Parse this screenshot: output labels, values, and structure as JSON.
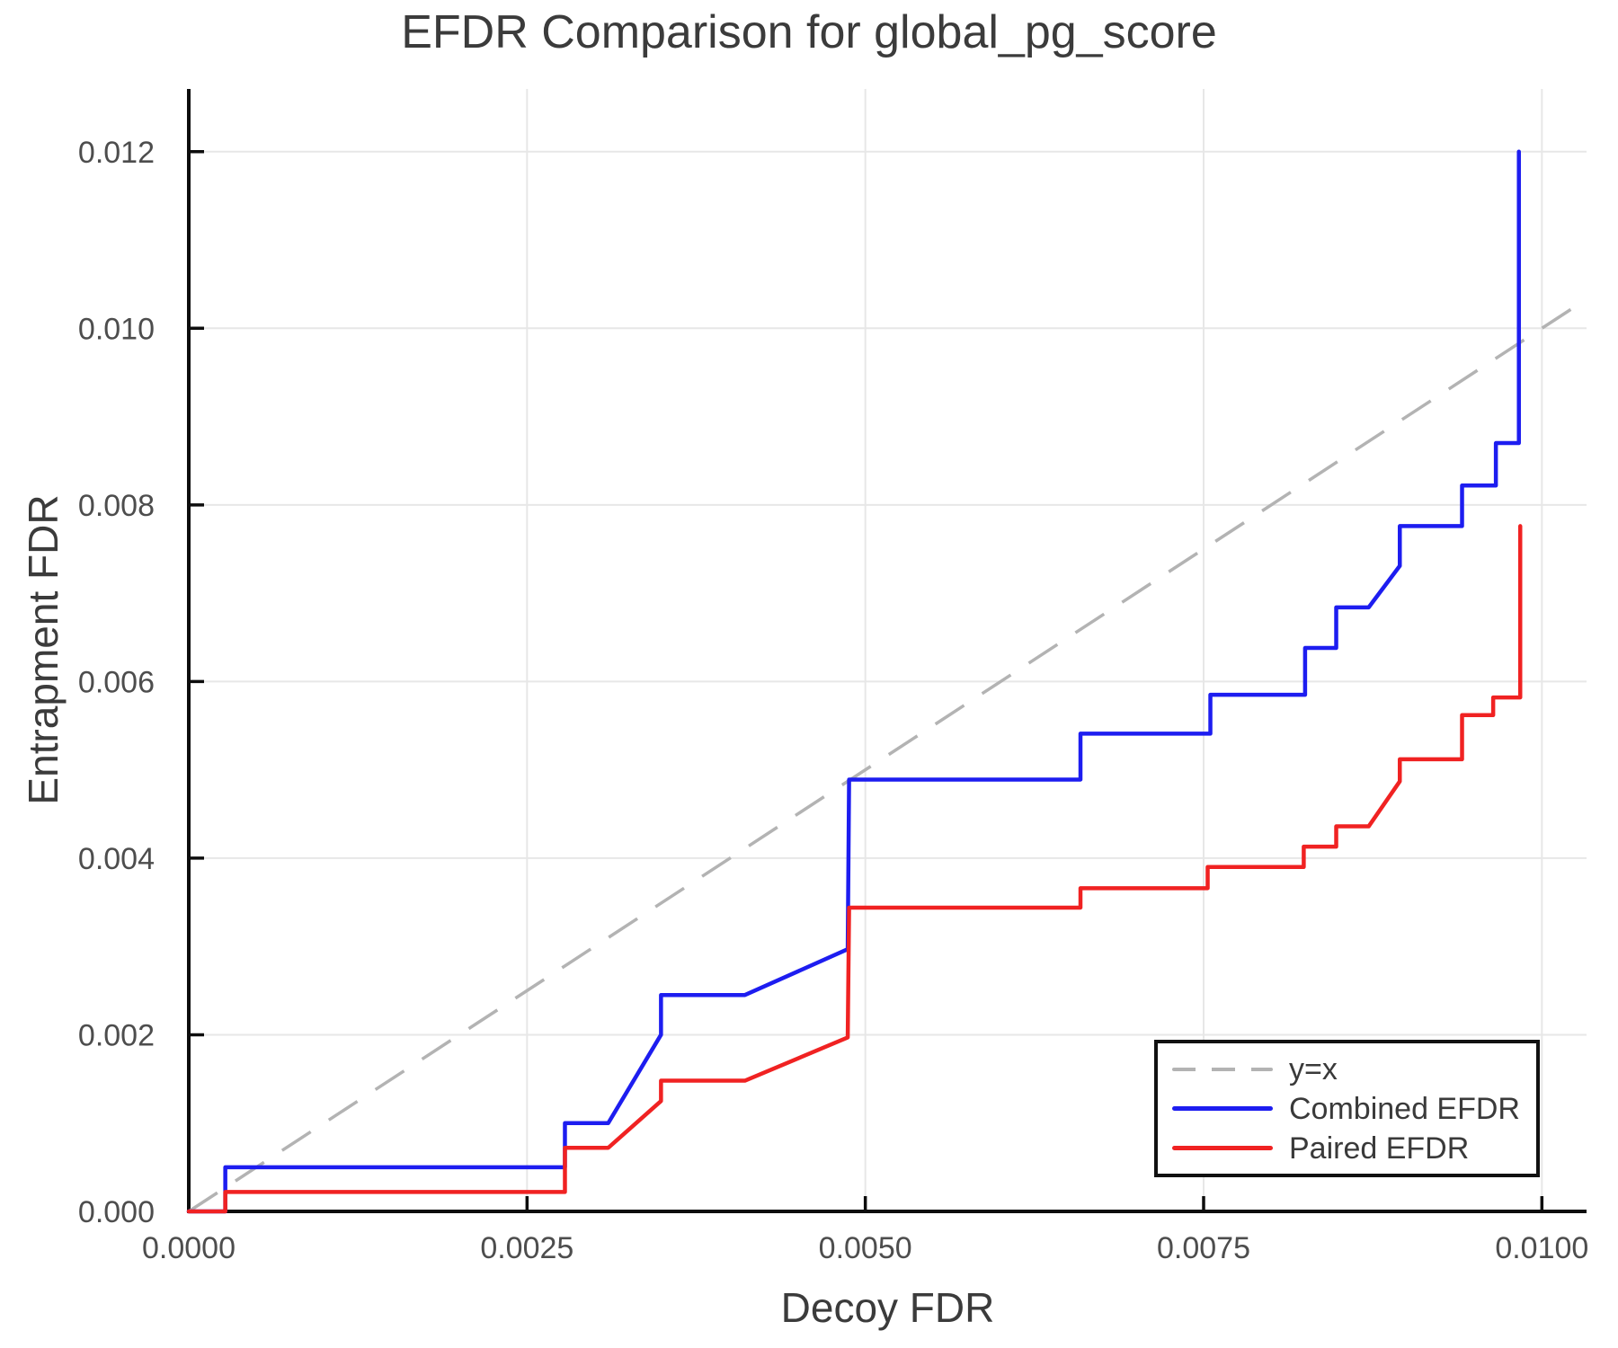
{
  "figure": {
    "title": "EFDR Comparison for global_pg_score",
    "x_axis_label": "Decoy FDR",
    "y_axis_label": "Entrapment FDR"
  },
  "legend": {
    "entries": [
      {
        "label": "y=x",
        "style": "dashed",
        "color": "#b3b3b3"
      },
      {
        "label": "Combined EFDR",
        "style": "solid",
        "color": "#1d1df0"
      },
      {
        "label": "Paired EFDR",
        "style": "solid",
        "color": "#f02222"
      }
    ]
  },
  "chart_data": {
    "type": "line",
    "title": "EFDR Comparison for global_pg_score",
    "xlabel": "Decoy FDR",
    "ylabel": "Entrapment FDR",
    "xlim": [
      0,
      0.01033
    ],
    "ylim": [
      0,
      0.01271
    ],
    "grid": true,
    "legend_position": "inset lower-right",
    "x_ticks": [
      {
        "value": 0.0,
        "label": "0.0000"
      },
      {
        "value": 0.0025,
        "label": "0.0025"
      },
      {
        "value": 0.005,
        "label": "0.0050"
      },
      {
        "value": 0.0075,
        "label": "0.0075"
      },
      {
        "value": 0.01,
        "label": "0.0100"
      }
    ],
    "y_ticks": [
      {
        "value": 0.0,
        "label": "0.000"
      },
      {
        "value": 0.002,
        "label": "0.002"
      },
      {
        "value": 0.004,
        "label": "0.004"
      },
      {
        "value": 0.006,
        "label": "0.006"
      },
      {
        "value": 0.008,
        "label": "0.008"
      },
      {
        "value": 0.01,
        "label": "0.010"
      },
      {
        "value": 0.012,
        "label": "0.012"
      }
    ],
    "identity_line": {
      "name": "y=x",
      "color": "#b3b3b3",
      "dashed": true,
      "points": [
        [
          0,
          0
        ],
        [
          0.01033,
          0.01033
        ]
      ]
    },
    "series": [
      {
        "name": "Combined EFDR",
        "color": "#1d1df0",
        "points": [
          [
            0.0,
            0.0
          ],
          [
            0.00027,
            0.0
          ],
          [
            0.00027,
            0.0005
          ],
          [
            0.00278,
            0.0005
          ],
          [
            0.00278,
            0.001
          ],
          [
            0.0031,
            0.001
          ],
          [
            0.00349,
            0.002
          ],
          [
            0.00349,
            0.00245
          ],
          [
            0.00411,
            0.00245
          ],
          [
            0.00487,
            0.00297
          ],
          [
            0.00488,
            0.00489
          ],
          [
            0.00659,
            0.00489
          ],
          [
            0.00659,
            0.00541
          ],
          [
            0.00755,
            0.00541
          ],
          [
            0.00755,
            0.00585
          ],
          [
            0.00825,
            0.00585
          ],
          [
            0.00825,
            0.00638
          ],
          [
            0.00848,
            0.00638
          ],
          [
            0.00848,
            0.00684
          ],
          [
            0.00872,
            0.00684
          ],
          [
            0.00895,
            0.00731
          ],
          [
            0.00895,
            0.00776
          ],
          [
            0.00941,
            0.00776
          ],
          [
            0.00941,
            0.00822
          ],
          [
            0.00966,
            0.00822
          ],
          [
            0.00966,
            0.0087
          ],
          [
            0.00983,
            0.0087
          ],
          [
            0.00983,
            0.012
          ]
        ]
      },
      {
        "name": "Paired EFDR",
        "color": "#f02222",
        "points": [
          [
            0.0,
            0.0
          ],
          [
            0.00027,
            0.0
          ],
          [
            0.00027,
            0.00022
          ],
          [
            0.00278,
            0.00022
          ],
          [
            0.00278,
            0.00072
          ],
          [
            0.0031,
            0.00072
          ],
          [
            0.00349,
            0.00125
          ],
          [
            0.00349,
            0.00148
          ],
          [
            0.00411,
            0.00148
          ],
          [
            0.00487,
            0.00197
          ],
          [
            0.00488,
            0.00344
          ],
          [
            0.00659,
            0.00344
          ],
          [
            0.00659,
            0.00366
          ],
          [
            0.00753,
            0.00366
          ],
          [
            0.00753,
            0.0039
          ],
          [
            0.00824,
            0.0039
          ],
          [
            0.00824,
            0.00413
          ],
          [
            0.00848,
            0.00413
          ],
          [
            0.00848,
            0.00436
          ],
          [
            0.00872,
            0.00436
          ],
          [
            0.00895,
            0.00487
          ],
          [
            0.00895,
            0.00512
          ],
          [
            0.00941,
            0.00512
          ],
          [
            0.00941,
            0.00562
          ],
          [
            0.00964,
            0.00562
          ],
          [
            0.00964,
            0.00582
          ],
          [
            0.00984,
            0.00582
          ],
          [
            0.00984,
            0.00776
          ]
        ]
      }
    ]
  }
}
